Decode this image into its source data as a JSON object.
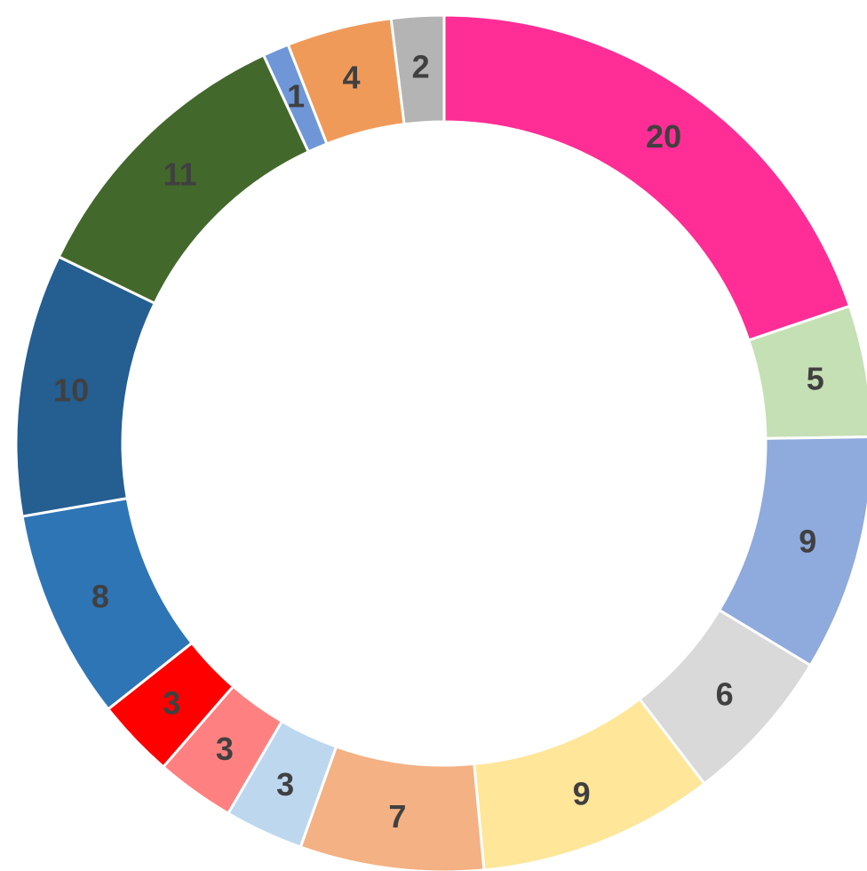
{
  "chart_data": {
    "type": "doughnut",
    "values": [
      20,
      5,
      9,
      6,
      9,
      7,
      3,
      3,
      3,
      8,
      10,
      11,
      1,
      4,
      2
    ],
    "colors": [
      "#ff2d95",
      "#c5e0b4",
      "#8faadc",
      "#d9d9d9",
      "#ffe699",
      "#f4b183",
      "#bdd7ee",
      "#ff8080",
      "#ff0000",
      "#2e75b6",
      "#255e91",
      "#43682b",
      "#6f97d8",
      "#f09a5a",
      "#b4b4b4"
    ]
  }
}
